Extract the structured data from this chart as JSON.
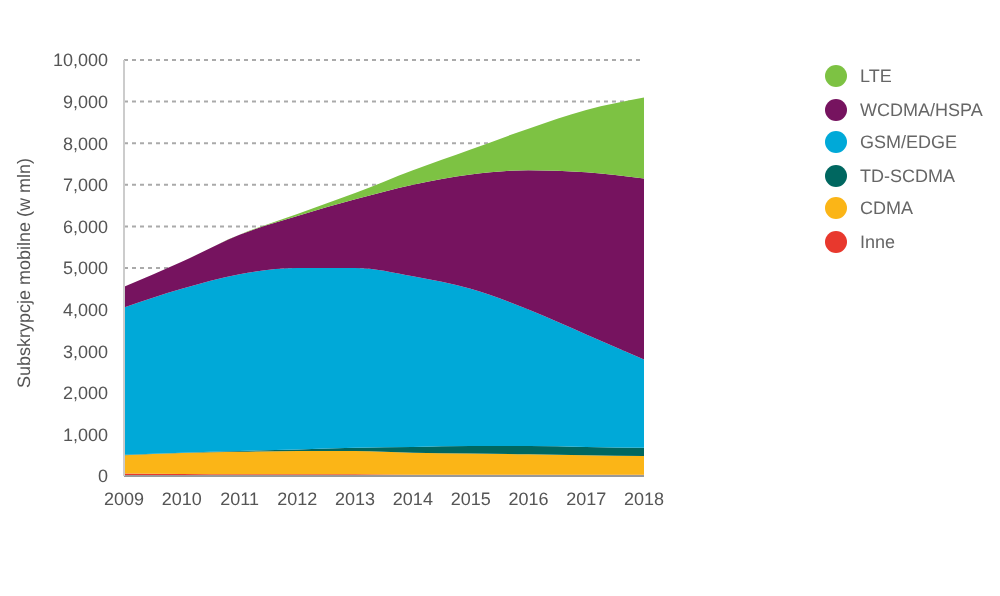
{
  "chart_data": {
    "type": "area",
    "stacked": true,
    "ylabel": "Subskrypcje mobilne (w mln)",
    "categories": [
      "2009",
      "2010",
      "2011",
      "2012",
      "2013",
      "2014",
      "2015",
      "2016",
      "2017",
      "2018"
    ],
    "series": [
      {
        "name": "Inne",
        "color": "#e8382d",
        "values": [
          60,
          50,
          40,
          40,
          40,
          30,
          30,
          30,
          30,
          30
        ]
      },
      {
        "name": "CDMA",
        "color": "#fbb517",
        "values": [
          440,
          500,
          540,
          560,
          560,
          530,
          510,
          490,
          470,
          450
        ]
      },
      {
        "name": "TD-SCDMA",
        "color": "#006760",
        "values": [
          10,
          10,
          20,
          40,
          80,
          140,
          180,
          200,
          200,
          200
        ]
      },
      {
        "name": "GSM/EDGE",
        "color": "#00a9d8",
        "values": [
          3540,
          3940,
          4250,
          4360,
          4320,
          4100,
          3780,
          3280,
          2700,
          2120
        ]
      },
      {
        "name": "WCDMA/HSPA",
        "color": "#76135f",
        "values": [
          500,
          650,
          950,
          1250,
          1650,
          2200,
          2750,
          3350,
          3900,
          4350
        ]
      },
      {
        "name": "LTE",
        "color": "#7dc243",
        "values": [
          0,
          0,
          0,
          50,
          150,
          350,
          600,
          1000,
          1500,
          1950
        ]
      }
    ],
    "ylim": [
      0,
      10000
    ],
    "yticks": [
      0,
      {
        "value": 1000,
        "label": "1,000"
      },
      {
        "value": 2000,
        "label": "2,000"
      },
      {
        "value": 3000,
        "label": "3,000"
      },
      {
        "value": 4000,
        "label": "4,000"
      },
      {
        "value": 5000,
        "label": "5,000"
      },
      {
        "value": 6000,
        "label": "6,000"
      },
      {
        "value": 7000,
        "label": "7,000"
      },
      {
        "value": 8000,
        "label": "8,000"
      },
      {
        "value": 9000,
        "label": "9,000"
      },
      {
        "value": 10000,
        "label": "10,000"
      }
    ],
    "grid": "y",
    "legend": "top right"
  }
}
